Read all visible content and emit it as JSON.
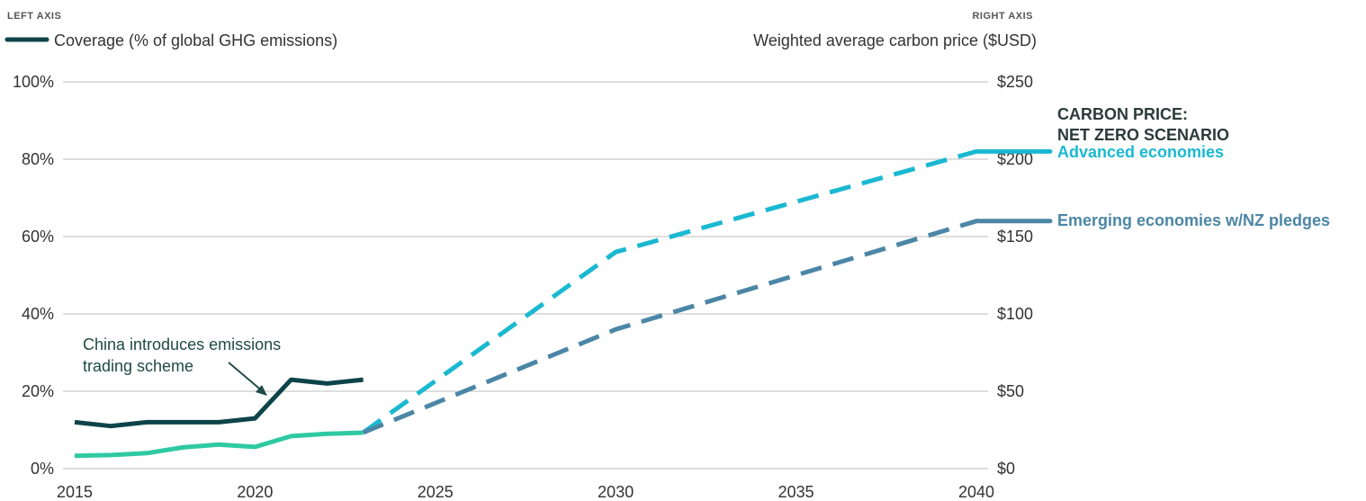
{
  "colors": {
    "coverage": "#0d4449",
    "price_historical": "#2ec9a3",
    "advanced": "#1ab8d1",
    "emerging": "#4b86a6",
    "grid": "#bdbdbd",
    "heading": "#2b3a3a"
  },
  "legend": {
    "left_tag": "LEFT AXIS",
    "left_label": "Coverage (% of global GHG emissions)",
    "right_tag": "RIGHT AXIS",
    "right_label": "Weighted average carbon price ($USD)"
  },
  "annotations": {
    "heading_line1": "CARBON PRICE:",
    "heading_line2": "NET ZERO SCENARIO",
    "advanced_label": "Advanced economies",
    "emerging_label": "Emerging economies w/NZ pledges",
    "china_line1": "China introduces emissions",
    "china_line2": "trading scheme"
  },
  "chart_data": {
    "type": "line",
    "x_ticks": [
      "2015",
      "2020",
      "2025",
      "2030",
      "2035",
      "2040"
    ],
    "xlim": [
      2015,
      2040
    ],
    "left_axis": {
      "ylim": [
        0,
        100
      ],
      "ticks": [
        "0%",
        "20%",
        "40%",
        "60%",
        "80%",
        "100%"
      ]
    },
    "right_axis": {
      "ylim": [
        0,
        250
      ],
      "ticks": [
        "$0",
        "$50",
        "$100",
        "$150",
        "$200",
        "$250"
      ]
    },
    "grid": true,
    "series": [
      {
        "name": "Coverage (% of global GHG emissions)",
        "axis": "left",
        "style": "solid",
        "points": [
          [
            2015,
            12
          ],
          [
            2016,
            11
          ],
          [
            2017,
            12
          ],
          [
            2018,
            12
          ],
          [
            2019,
            12
          ],
          [
            2020,
            13
          ],
          [
            2021,
            23
          ],
          [
            2022,
            22
          ],
          [
            2023,
            23
          ]
        ]
      },
      {
        "axis": "left",
        "style": "solid",
        "points": [
          [
            2015,
            3.3
          ],
          [
            2016,
            3.5
          ],
          [
            2017,
            4
          ],
          [
            2018,
            5.5
          ],
          [
            2019,
            6.2
          ],
          [
            2020,
            5.6
          ],
          [
            2021,
            8.4
          ],
          [
            2022,
            9
          ],
          [
            2023,
            9.3
          ]
        ]
      },
      {
        "name": "Advanced economies",
        "axis": "right",
        "style": "dashed",
        "points": [
          [
            2023,
            23.3
          ],
          [
            2030,
            140
          ],
          [
            2040,
            205
          ]
        ]
      },
      {
        "name": "Emerging economies w/NZ pledges",
        "axis": "right",
        "style": "dashed",
        "points": [
          [
            2023,
            23.3
          ],
          [
            2030,
            90
          ],
          [
            2040,
            160
          ]
        ]
      }
    ]
  }
}
